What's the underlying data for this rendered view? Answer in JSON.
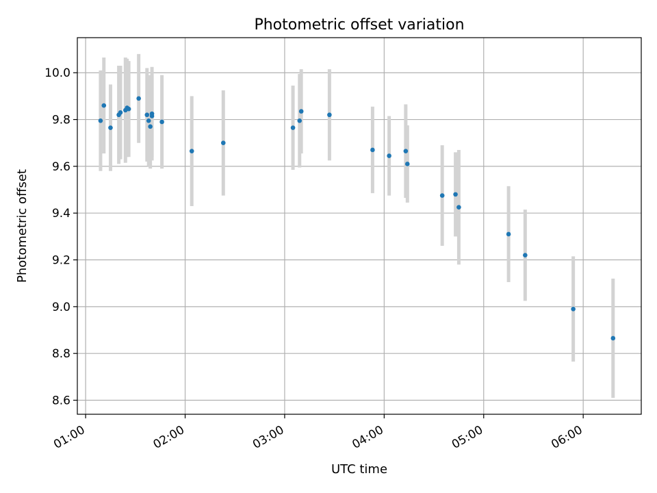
{
  "chart_data": {
    "type": "scatter",
    "title": "Photometric offset variation",
    "xlabel": "UTC time",
    "ylabel": "Photometric offset",
    "x_range": [
      "00:55",
      "06:35"
    ],
    "ylim": [
      8.54,
      10.15
    ],
    "x_ticks": [
      "01:00",
      "02:00",
      "03:00",
      "04:00",
      "05:00",
      "06:00"
    ],
    "y_ticks": [
      "8.6",
      "8.8",
      "9.0",
      "9.2",
      "9.4",
      "9.6",
      "9.8",
      "10.0"
    ],
    "grid": true,
    "colors": {
      "point": "#1f77b4",
      "errorbar": "#d3d3d3",
      "grid": "#b0b0b0"
    },
    "points": [
      {
        "x": "01:09",
        "y": 9.795,
        "err": 0.215
      },
      {
        "x": "01:11",
        "y": 9.86,
        "err": 0.205
      },
      {
        "x": "01:15",
        "y": 9.765,
        "err": 0.185
      },
      {
        "x": "01:20",
        "y": 9.82,
        "err": 0.21
      },
      {
        "x": "01:21",
        "y": 9.83,
        "err": 0.2
      },
      {
        "x": "01:24",
        "y": 9.84,
        "err": 0.225
      },
      {
        "x": "01:25",
        "y": 9.85,
        "err": 0.21
      },
      {
        "x": "01:26",
        "y": 9.845,
        "err": 0.205
      },
      {
        "x": "01:32",
        "y": 9.89,
        "err": 0.19
      },
      {
        "x": "01:37",
        "y": 9.82,
        "err": 0.2
      },
      {
        "x": "01:38",
        "y": 9.795,
        "err": 0.195
      },
      {
        "x": "01:39",
        "y": 9.77,
        "err": 0.18
      },
      {
        "x": "01:40",
        "y": 9.825,
        "err": 0.2
      },
      {
        "x": "01:40",
        "y": 9.815,
        "err": 0.175
      },
      {
        "x": "01:46",
        "y": 9.79,
        "err": 0.2
      },
      {
        "x": "02:04",
        "y": 9.665,
        "err": 0.235
      },
      {
        "x": "02:23",
        "y": 9.7,
        "err": 0.225
      },
      {
        "x": "03:05",
        "y": 9.765,
        "err": 0.18
      },
      {
        "x": "03:09",
        "y": 9.795,
        "err": 0.2
      },
      {
        "x": "03:10",
        "y": 9.835,
        "err": 0.18
      },
      {
        "x": "03:27",
        "y": 9.82,
        "err": 0.195
      },
      {
        "x": "03:53",
        "y": 9.67,
        "err": 0.185
      },
      {
        "x": "04:03",
        "y": 9.645,
        "err": 0.17
      },
      {
        "x": "04:13",
        "y": 9.665,
        "err": 0.2
      },
      {
        "x": "04:14",
        "y": 9.61,
        "err": 0.165
      },
      {
        "x": "04:35",
        "y": 9.475,
        "err": 0.215
      },
      {
        "x": "04:43",
        "y": 9.48,
        "err": 0.18
      },
      {
        "x": "04:45",
        "y": 9.425,
        "err": 0.245
      },
      {
        "x": "05:15",
        "y": 9.31,
        "err": 0.205
      },
      {
        "x": "05:25",
        "y": 9.22,
        "err": 0.195
      },
      {
        "x": "05:54",
        "y": 8.99,
        "err": 0.225
      },
      {
        "x": "06:18",
        "y": 8.865,
        "err": 0.255
      }
    ]
  }
}
